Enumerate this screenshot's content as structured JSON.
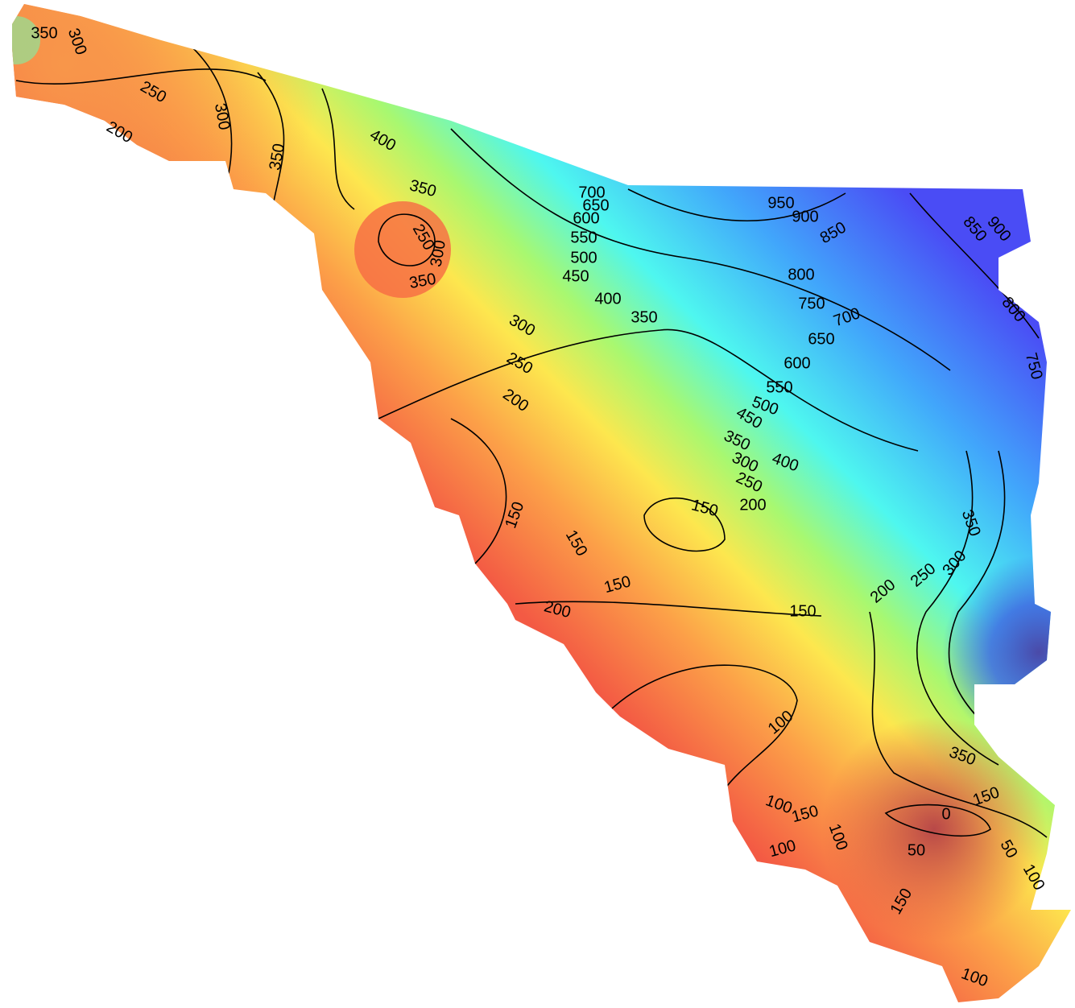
{
  "contour_labels": [
    350,
    300,
    250,
    200,
    300,
    350,
    400,
    350,
    250,
    300,
    350,
    700,
    650,
    600,
    550,
    500,
    450,
    400,
    350,
    300,
    250,
    200,
    950,
    900,
    850,
    800,
    750,
    700,
    650,
    600,
    550,
    500,
    450,
    400,
    350,
    300,
    250,
    200,
    150,
    150,
    150,
    150,
    200,
    150,
    100,
    200,
    250,
    300,
    350,
    850,
    900,
    800,
    750,
    0,
    50,
    50,
    100,
    100,
    150,
    100,
    100,
    150,
    100,
    150,
    350
  ]
}
